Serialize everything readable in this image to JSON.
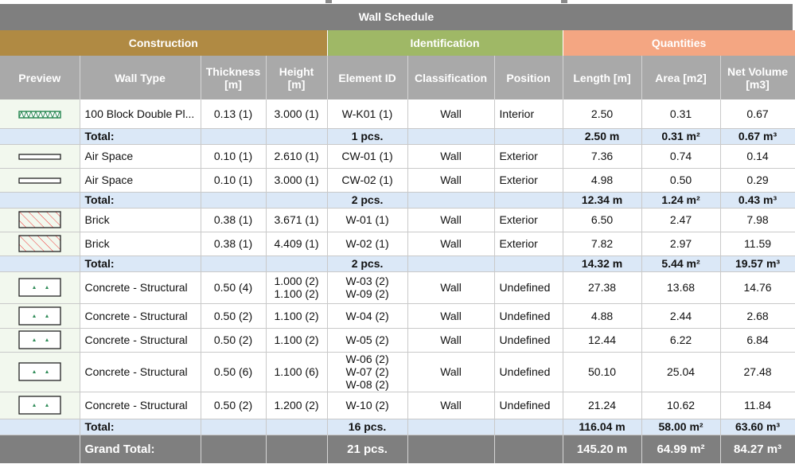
{
  "schedule": {
    "title": "Wall Schedule",
    "groups": {
      "construction": "Construction",
      "identification": "Identification",
      "quantities": "Quantities"
    },
    "columns": {
      "preview": "Preview",
      "wall_type": "Wall Type",
      "thickness_1": "Thickness",
      "thickness_2": "[m]",
      "height_1": "Height",
      "height_2": "[m]",
      "element_id": "Element ID",
      "classification": "Classification",
      "position": "Position",
      "length": "Length [m]",
      "area": "Area [m2]",
      "net_volume_1": "Net Volume",
      "net_volume_2": "[m3]"
    },
    "sections": [
      {
        "rows": [
          {
            "preview": "zigzag-block-swatch",
            "wall_type": "100 Block Double Pl...",
            "thickness": "0.13 (1)",
            "height": [
              "3.000 (1)"
            ],
            "element_id": [
              "W-K01 (1)"
            ],
            "classification": "Wall",
            "position": "Interior",
            "length": "2.50",
            "area": "0.31",
            "net_volume": "0.67"
          }
        ],
        "total": {
          "label": "Total:",
          "count": "1 pcs.",
          "length": "2.50 m",
          "area": "0.31 m²",
          "net_volume": "0.67 m³"
        }
      },
      {
        "rows": [
          {
            "preview": "empty-rect-swatch",
            "wall_type": "Air Space",
            "thickness": "0.10 (1)",
            "height": [
              "2.610 (1)"
            ],
            "element_id": [
              "CW-01 (1)"
            ],
            "classification": "Wall",
            "position": "Exterior",
            "length": "7.36",
            "area": "0.74",
            "net_volume": "0.14"
          },
          {
            "preview": "empty-rect-swatch",
            "wall_type": "Air Space",
            "thickness": "0.10 (1)",
            "height": [
              "3.000 (1)"
            ],
            "element_id": [
              "CW-02 (1)"
            ],
            "classification": "Wall",
            "position": "Exterior",
            "length": "4.98",
            "area": "0.50",
            "net_volume": "0.29"
          }
        ],
        "total": {
          "label": "Total:",
          "count": "2 pcs.",
          "length": "12.34 m",
          "area": "1.24 m²",
          "net_volume": "0.43 m³"
        }
      },
      {
        "rows": [
          {
            "preview": "brick-hatch-swatch",
            "wall_type": "Brick",
            "thickness": "0.38 (1)",
            "height": [
              "3.671 (1)"
            ],
            "element_id": [
              "W-01 (1)"
            ],
            "classification": "Wall",
            "position": "Exterior",
            "length": "6.50",
            "area": "2.47",
            "net_volume": "7.98"
          },
          {
            "preview": "brick-hatch-swatch",
            "wall_type": "Brick",
            "thickness": "0.38 (1)",
            "height": [
              "4.409 (1)"
            ],
            "element_id": [
              "W-02 (1)"
            ],
            "classification": "Wall",
            "position": "Exterior",
            "length": "7.82",
            "area": "2.97",
            "net_volume": "11.59"
          }
        ],
        "total": {
          "label": "Total:",
          "count": "2 pcs.",
          "length": "14.32 m",
          "area": "5.44 m²",
          "net_volume": "19.57 m³"
        }
      },
      {
        "rows": [
          {
            "preview": "concrete-swatch",
            "wall_type": "Concrete - Structural",
            "thickness": "0.50 (4)",
            "height": [
              "1.000 (2)",
              "1.100 (2)"
            ],
            "element_id": [
              "W-03 (2)",
              "W-09 (2)"
            ],
            "classification": "Wall",
            "position": "Undefined",
            "length": "27.38",
            "area": "13.68",
            "net_volume": "14.76"
          },
          {
            "preview": "concrete-swatch",
            "wall_type": "Concrete - Structural",
            "thickness": "0.50 (2)",
            "height": [
              "1.100 (2)"
            ],
            "element_id": [
              "W-04 (2)"
            ],
            "classification": "Wall",
            "position": "Undefined",
            "length": "4.88",
            "area": "2.44",
            "net_volume": "2.68"
          },
          {
            "preview": "concrete-swatch",
            "wall_type": "Concrete - Structural",
            "thickness": "0.50 (2)",
            "height": [
              "1.100 (2)"
            ],
            "element_id": [
              "W-05 (2)"
            ],
            "classification": "Wall",
            "position": "Undefined",
            "length": "12.44",
            "area": "6.22",
            "net_volume": "6.84"
          },
          {
            "preview": "concrete-swatch",
            "wall_type": "Concrete - Structural",
            "thickness": "0.50 (6)",
            "height": [
              "1.100 (6)"
            ],
            "element_id": [
              "W-06 (2)",
              "W-07 (2)",
              "W-08 (2)"
            ],
            "classification": "Wall",
            "position": "Undefined",
            "length": "50.10",
            "area": "25.04",
            "net_volume": "27.48"
          },
          {
            "preview": "concrete-swatch",
            "wall_type": "Concrete - Structural",
            "thickness": "0.50 (2)",
            "height": [
              "1.200 (2)"
            ],
            "element_id": [
              "W-10 (2)"
            ],
            "classification": "Wall",
            "position": "Undefined",
            "length": "21.24",
            "area": "10.62",
            "net_volume": "11.84"
          }
        ],
        "total": {
          "label": "Total:",
          "count": "16 pcs.",
          "length": "116.04 m",
          "area": "58.00 m²",
          "net_volume": "63.60 m³"
        }
      }
    ],
    "grand_total": {
      "label": "Grand Total:",
      "count": "21 pcs.",
      "length": "145.20 m",
      "area": "64.99 m²",
      "net_volume": "84.27 m³"
    }
  }
}
